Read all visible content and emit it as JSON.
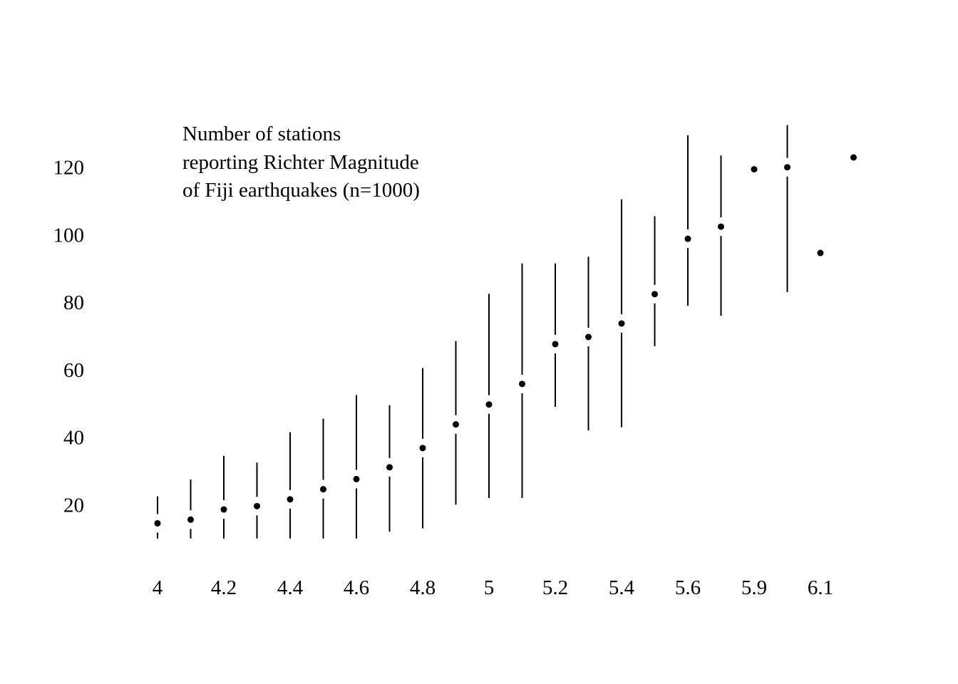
{
  "chart_data": {
    "type": "scatter",
    "annotation": [
      "Number of stations",
      "reporting Richter Magnitude",
      "of Fiji earthquakes (n=1000)"
    ],
    "x_tick_labels": [
      "4",
      "4.2",
      "4.4",
      "4.6",
      "4.8",
      "5",
      "5.2",
      "5.4",
      "5.6",
      "5.9",
      "6.1"
    ],
    "y_tick_labels": [
      "20",
      "40",
      "60",
      "80",
      "100",
      "120"
    ],
    "ylim": [
      7,
      140
    ],
    "axes_drawn": false,
    "grid": false,
    "points": [
      {
        "x": "4",
        "y": 14.5,
        "low": 10,
        "high": 22.5
      },
      {
        "x": "4.1",
        "y": 15.6,
        "low": 10,
        "high": 27.5
      },
      {
        "x": "4.2",
        "y": 18.6,
        "low": 10,
        "high": 34.5
      },
      {
        "x": "4.3",
        "y": 19.6,
        "low": 10,
        "high": 32.5
      },
      {
        "x": "4.4",
        "y": 21.6,
        "low": 10,
        "high": 41.5
      },
      {
        "x": "4.5",
        "y": 24.6,
        "low": 10,
        "high": 45.5
      },
      {
        "x": "4.6",
        "y": 27.6,
        "low": 10,
        "high": 52.5
      },
      {
        "x": "4.7",
        "y": 31.1,
        "low": 12,
        "high": 49.5
      },
      {
        "x": "4.8",
        "y": 36.8,
        "low": 13,
        "high": 60.5
      },
      {
        "x": "4.9",
        "y": 43.8,
        "low": 20,
        "high": 68.5
      },
      {
        "x": "5",
        "y": 49.7,
        "low": 22,
        "high": 82.5
      },
      {
        "x": "5.1",
        "y": 55.8,
        "low": 22,
        "high": 91.5
      },
      {
        "x": "5.2",
        "y": 67.6,
        "low": 49,
        "high": 91.5
      },
      {
        "x": "5.3",
        "y": 69.7,
        "low": 42,
        "high": 93.5
      },
      {
        "x": "5.4",
        "y": 73.7,
        "low": 43,
        "high": 110.5
      },
      {
        "x": "5.5",
        "y": 82.4,
        "low": 67,
        "high": 105.5
      },
      {
        "x": "5.6",
        "y": 98.8,
        "low": 79,
        "high": 129.5
      },
      {
        "x": "5.7",
        "y": 102.4,
        "low": 76,
        "high": 123.5
      },
      {
        "x": "5.9",
        "y": 119.4,
        "low": null,
        "high": null
      },
      {
        "x": "6",
        "y": 120.0,
        "low": 83,
        "high": 132.5
      },
      {
        "x": "6.1",
        "y": 94.6,
        "low": null,
        "high": null
      },
      {
        "x": "6.4",
        "y": 122.9,
        "low": null,
        "high": null
      }
    ]
  }
}
